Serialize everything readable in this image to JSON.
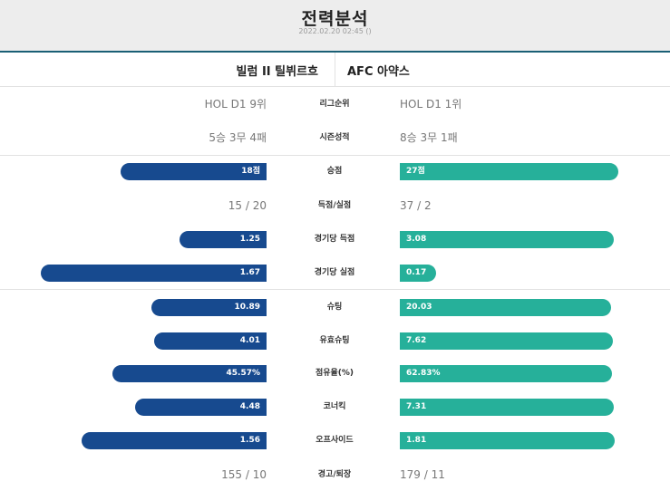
{
  "header": {
    "title": "전력분석",
    "datetime": "2022.02.20 02:45 ()"
  },
  "teams": {
    "home": "빌럼 II 틸뷔르흐",
    "away": "AFC 아약스"
  },
  "rows": [
    {
      "label": "리그순위",
      "type": "text",
      "home": "HOL D1 9위",
      "away": "HOL D1 1위"
    },
    {
      "label": "시즌성적",
      "type": "text",
      "home": "5승 3무 4패",
      "away": "8승 3무 1패"
    },
    {
      "label": "승점",
      "type": "bar",
      "home": "18점",
      "away": "27점",
      "home_value": 18,
      "away_value": 27
    },
    {
      "label": "득점/실점",
      "type": "text",
      "home": "15 / 20",
      "away": "37 / 2"
    },
    {
      "label": "경기당 득점",
      "type": "bar",
      "home": "1.25",
      "away": "3.08",
      "home_value": 1.25,
      "away_value": 3.08
    },
    {
      "label": "경기당 실점",
      "type": "bar",
      "home": "1.67",
      "away": "0.17",
      "home_value": 1.67,
      "away_value": 0.17
    },
    {
      "label": "슈팅",
      "type": "bar",
      "home": "10.89",
      "away": "20.03",
      "home_value": 10.89,
      "away_value": 20.03
    },
    {
      "label": "유효슈팅",
      "type": "bar",
      "home": "4.01",
      "away": "7.62",
      "home_value": 4.01,
      "away_value": 7.62
    },
    {
      "label": "점유율(%)",
      "type": "bar",
      "home": "45.57%",
      "away": "62.83%",
      "home_value": 45.57,
      "away_value": 62.83
    },
    {
      "label": "코너킥",
      "type": "bar",
      "home": "4.48",
      "away": "7.31",
      "home_value": 4.48,
      "away_value": 7.31
    },
    {
      "label": "오프사이드",
      "type": "bar",
      "home": "1.56",
      "away": "1.81",
      "home_value": 1.56,
      "away_value": 1.81
    },
    {
      "label": "경고/퇴장",
      "type": "text",
      "home": "155 / 10",
      "away": "179 / 11"
    }
  ],
  "colors": {
    "home_bar": "#174a8f",
    "away_bar": "#26b09a",
    "header_bg": "#ededed",
    "accent_line": "#1a5f75"
  }
}
